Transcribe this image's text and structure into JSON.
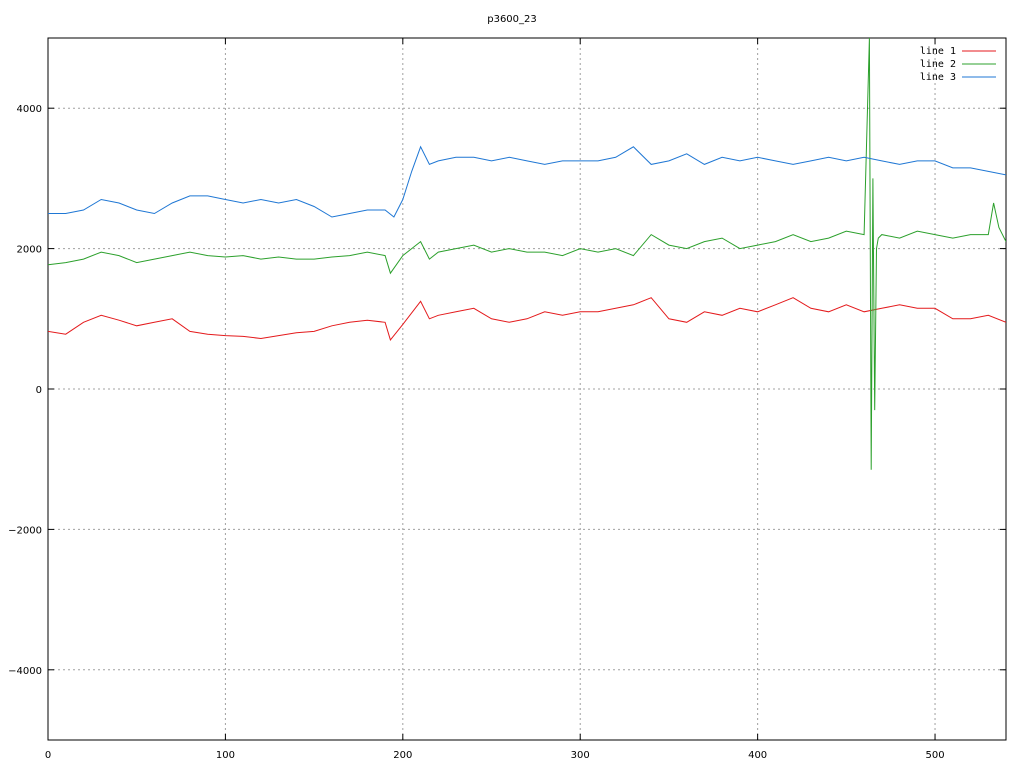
{
  "chart_data": {
    "type": "line",
    "title": "p3600_23",
    "xlim": [
      0,
      540
    ],
    "ylim": [
      -5000,
      5000
    ],
    "x_ticks": [
      0,
      100,
      200,
      300,
      400,
      500
    ],
    "y_ticks": [
      -4000,
      -2000,
      0,
      2000,
      4000
    ],
    "grid": true,
    "legend_position": "top-right",
    "series": [
      {
        "name": "line 1",
        "color": "#e41a1c",
        "x": [
          0,
          10,
          20,
          30,
          40,
          50,
          60,
          70,
          80,
          90,
          100,
          110,
          120,
          130,
          140,
          150,
          160,
          170,
          180,
          190,
          193,
          200,
          210,
          215,
          220,
          230,
          240,
          250,
          260,
          270,
          280,
          290,
          300,
          310,
          320,
          330,
          340,
          350,
          360,
          370,
          380,
          390,
          400,
          410,
          420,
          430,
          440,
          450,
          460,
          470,
          480,
          490,
          500,
          510,
          520,
          530,
          540
        ],
        "y": [
          820,
          780,
          950,
          1050,
          980,
          900,
          950,
          1000,
          820,
          780,
          760,
          750,
          720,
          760,
          800,
          820,
          900,
          950,
          980,
          950,
          700,
          920,
          1250,
          1000,
          1050,
          1100,
          1150,
          1000,
          950,
          1000,
          1100,
          1050,
          1100,
          1100,
          1150,
          1200,
          1300,
          1000,
          950,
          1100,
          1050,
          1150,
          1100,
          1200,
          1300,
          1150,
          1100,
          1200,
          1100,
          1150,
          1200,
          1150,
          1150,
          1000,
          1000,
          1050,
          950
        ]
      },
      {
        "name": "line 2",
        "color": "#2ca02c",
        "x": [
          0,
          10,
          20,
          30,
          40,
          50,
          60,
          70,
          80,
          90,
          100,
          110,
          120,
          130,
          140,
          150,
          160,
          170,
          180,
          190,
          193,
          200,
          210,
          215,
          220,
          230,
          240,
          250,
          260,
          270,
          280,
          290,
          300,
          310,
          320,
          330,
          340,
          350,
          360,
          370,
          380,
          390,
          400,
          410,
          420,
          430,
          440,
          450,
          460,
          463,
          464,
          465,
          466,
          467,
          468,
          470,
          480,
          490,
          500,
          510,
          520,
          530,
          533,
          536,
          540
        ],
        "y": [
          1770,
          1800,
          1850,
          1950,
          1900,
          1800,
          1850,
          1900,
          1950,
          1900,
          1880,
          1900,
          1850,
          1880,
          1850,
          1850,
          1880,
          1900,
          1950,
          1900,
          1650,
          1900,
          2100,
          1850,
          1950,
          2000,
          2050,
          1950,
          2000,
          1950,
          1950,
          1900,
          2000,
          1950,
          2000,
          1900,
          2200,
          2050,
          2000,
          2100,
          2150,
          2000,
          2050,
          2100,
          2200,
          2100,
          2150,
          2250,
          2200,
          5000,
          -1150,
          3000,
          -300,
          2000,
          2150,
          2200,
          2150,
          2250,
          2200,
          2150,
          2200,
          2200,
          2650,
          2300,
          2100
        ]
      },
      {
        "name": "line 3",
        "color": "#1f77d4",
        "x": [
          0,
          10,
          20,
          30,
          40,
          50,
          60,
          70,
          80,
          90,
          100,
          110,
          120,
          130,
          140,
          150,
          160,
          170,
          180,
          190,
          195,
          200,
          205,
          210,
          215,
          220,
          230,
          240,
          250,
          260,
          270,
          280,
          290,
          300,
          310,
          320,
          330,
          340,
          350,
          360,
          370,
          380,
          390,
          400,
          410,
          420,
          430,
          440,
          450,
          460,
          470,
          480,
          490,
          500,
          510,
          520,
          530,
          540
        ],
        "y": [
          2500,
          2500,
          2550,
          2700,
          2650,
          2550,
          2500,
          2650,
          2750,
          2750,
          2700,
          2650,
          2700,
          2650,
          2700,
          2600,
          2450,
          2500,
          2550,
          2550,
          2450,
          2700,
          3100,
          3450,
          3200,
          3250,
          3300,
          3300,
          3250,
          3300,
          3250,
          3200,
          3250,
          3250,
          3250,
          3300,
          3450,
          3200,
          3250,
          3350,
          3200,
          3300,
          3250,
          3300,
          3250,
          3200,
          3250,
          3300,
          3250,
          3300,
          3250,
          3200,
          3250,
          3250,
          3150,
          3150,
          3100,
          3050
        ]
      }
    ]
  }
}
